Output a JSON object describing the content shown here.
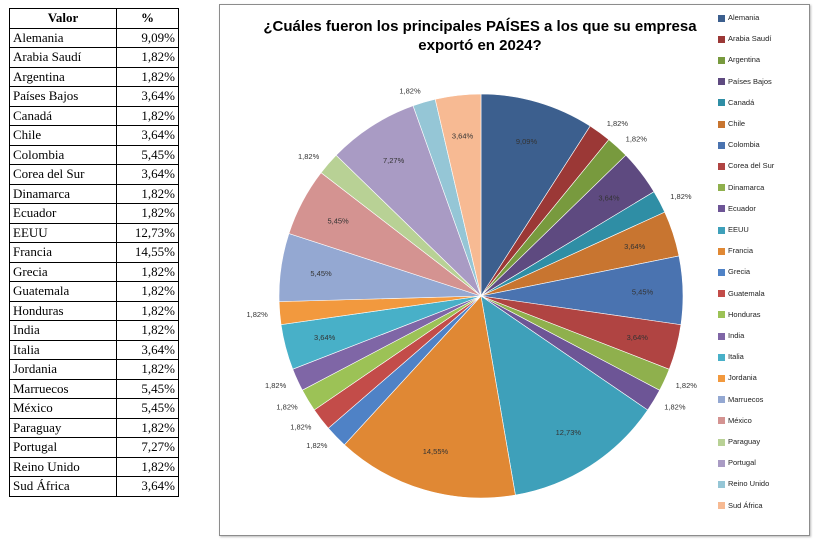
{
  "table": {
    "header_country": "Valor",
    "header_percent": "%",
    "rows": [
      {
        "country": "Alemania",
        "percent": "9,09%"
      },
      {
        "country": "Arabia Saudí",
        "percent": "1,82%"
      },
      {
        "country": "Argentina",
        "percent": "1,82%"
      },
      {
        "country": "Países Bajos",
        "percent": "3,64%"
      },
      {
        "country": "Canadá",
        "percent": "1,82%"
      },
      {
        "country": "Chile",
        "percent": "3,64%"
      },
      {
        "country": "Colombia",
        "percent": "5,45%"
      },
      {
        "country": "Corea del Sur",
        "percent": "3,64%"
      },
      {
        "country": "Dinamarca",
        "percent": "1,82%"
      },
      {
        "country": "Ecuador",
        "percent": "1,82%"
      },
      {
        "country": "EEUU",
        "percent": "12,73%"
      },
      {
        "country": "Francia",
        "percent": "14,55%"
      },
      {
        "country": "Grecia",
        "percent": "1,82%"
      },
      {
        "country": "Guatemala",
        "percent": "1,82%"
      },
      {
        "country": "Honduras",
        "percent": "1,82%"
      },
      {
        "country": "India",
        "percent": "1,82%"
      },
      {
        "country": "Italia",
        "percent": "3,64%"
      },
      {
        "country": "Jordania",
        "percent": "1,82%"
      },
      {
        "country": "Marruecos",
        "percent": "5,45%"
      },
      {
        "country": "México",
        "percent": "5,45%"
      },
      {
        "country": "Paraguay",
        "percent": "1,82%"
      },
      {
        "country": "Portugal",
        "percent": "7,27%"
      },
      {
        "country": "Reino Unido",
        "percent": "1,82%"
      },
      {
        "country": "Sud África",
        "percent": "3,64%"
      }
    ]
  },
  "chart_data": {
    "type": "pie",
    "title": "¿Cuáles fueron los principales PAÍSES a los que su empresa exportó en 2024?",
    "legend_position": "right",
    "categories": [
      "Alemania",
      "Arabia Saudí",
      "Argentina",
      "Países Bajos",
      "Canadá",
      "Chile",
      "Colombia",
      "Corea del Sur",
      "Dinamarca",
      "Ecuador",
      "EEUU",
      "Francia",
      "Grecia",
      "Guatemala",
      "Honduras",
      "India",
      "Italia",
      "Jordania",
      "Marruecos",
      "México",
      "Paraguay",
      "Portugal",
      "Reino Unido",
      "Sud África"
    ],
    "values": [
      9.09,
      1.82,
      1.82,
      3.64,
      1.82,
      3.64,
      5.45,
      3.64,
      1.82,
      1.82,
      12.73,
      14.55,
      1.82,
      1.82,
      1.82,
      1.82,
      3.64,
      1.82,
      5.45,
      5.45,
      1.82,
      7.27,
      1.82,
      3.64
    ],
    "value_labels": [
      "9,09%",
      "1,82%",
      "1,82%",
      "3,64%",
      "1,82%",
      "3,64%",
      "5,45%",
      "3,64%",
      "1,82%",
      "1,82%",
      "12,73%",
      "14,55%",
      "1,82%",
      "1,82%",
      "1,82%",
      "1,82%",
      "3,64%",
      "1,82%",
      "5,45%",
      "5,45%",
      "1,82%",
      "7,27%",
      "1,82%",
      "3,64%"
    ],
    "colors": [
      "#3c5f8e",
      "#9b3836",
      "#789a3e",
      "#5e4a80",
      "#2f8ea5",
      "#c87530",
      "#4a73b0",
      "#b04442",
      "#8fb04d",
      "#6d5596",
      "#3ea0ba",
      "#e08834",
      "#4f82c6",
      "#c34c49",
      "#9cc256",
      "#7f66a6",
      "#48b0c8",
      "#f2993e",
      "#94a8d2",
      "#d49391",
      "#b8d195",
      "#a99bc4",
      "#95c6d6",
      "#f7ba93"
    ]
  }
}
